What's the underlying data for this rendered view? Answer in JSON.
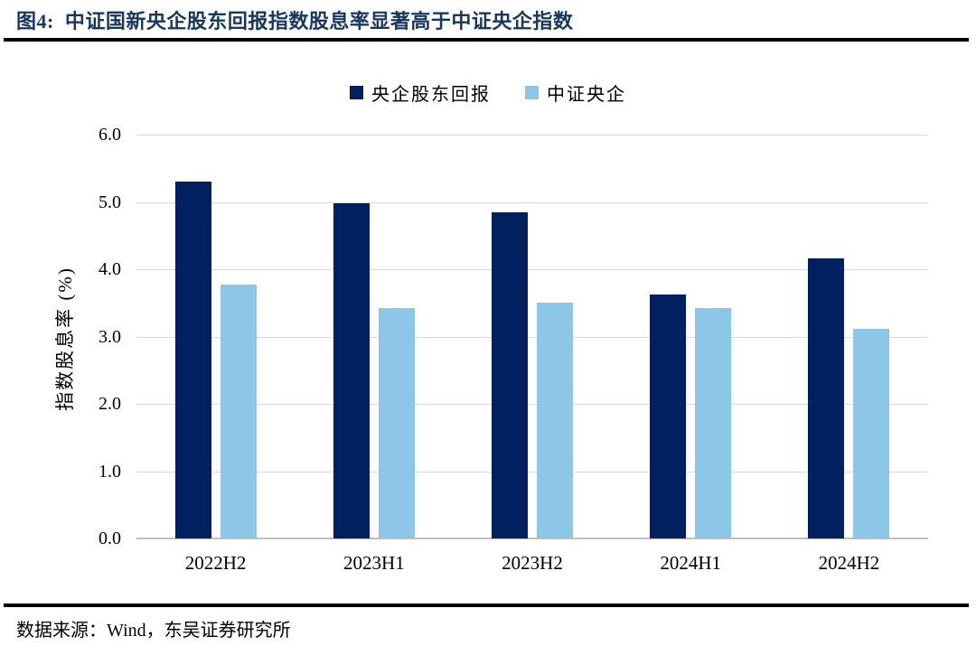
{
  "header": {
    "title": "图4:  中证国新央企股东回报指数股息率显著高于中证央企指数"
  },
  "chart_data": {
    "type": "bar",
    "title": "图4:  中证国新央企股东回报指数股息率显著高于中证央企指数",
    "categories": [
      "2022H2",
      "2023H1",
      "2023H2",
      "2024H1",
      "2024H2"
    ],
    "series": [
      {
        "name": "央企股东回报",
        "color": "#002060",
        "values": [
          5.3,
          4.98,
          4.85,
          3.63,
          4.16
        ]
      },
      {
        "name": "中证央企",
        "color": "#8DC7E8",
        "values": [
          3.77,
          3.42,
          3.51,
          3.42,
          3.12
        ]
      }
    ],
    "xlabel": "",
    "ylabel": "指数股息率 (%)",
    "ylim": [
      0,
      6
    ],
    "ytick_step": 1.0,
    "yticks": [
      "0.0",
      "1.0",
      "2.0",
      "3.0",
      "4.0",
      "5.0",
      "6.0"
    ],
    "grid": true,
    "legend_position": "top",
    "colors": {
      "grid": "#D9D9D9",
      "axis_line": "#BFBFBF",
      "text": "#000000",
      "title": "#17375E",
      "divider": "#000000"
    }
  },
  "footer": {
    "source": "数据来源：Wind，东吴证券研究所"
  }
}
